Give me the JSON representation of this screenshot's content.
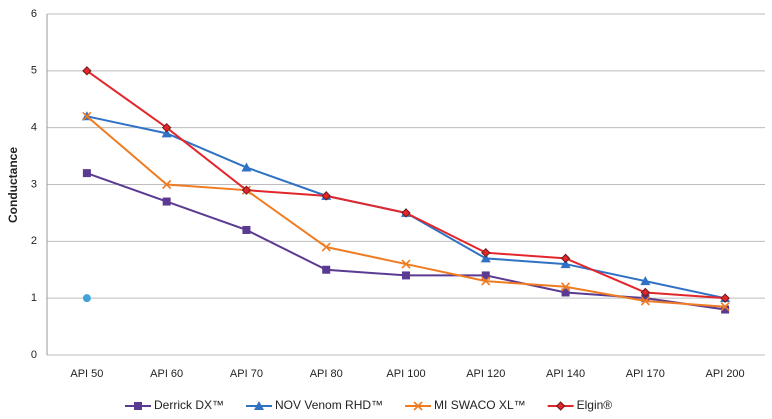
{
  "chart_data": {
    "type": "line",
    "y_label": "Conductance",
    "categories": [
      "API 50",
      "API 60",
      "API 70",
      "API 80",
      "API 100",
      "API 120",
      "API 140",
      "API 170",
      "API 200"
    ],
    "ylim": [
      0,
      6
    ],
    "yticks": [
      0,
      1,
      2,
      3,
      4,
      5,
      6
    ],
    "grid": true,
    "legend": "bottom",
    "series": [
      {
        "name": "Derrick DX™",
        "color": "#5b3b92",
        "marker": "square",
        "values": [
          3.2,
          2.7,
          2.2,
          1.5,
          1.4,
          1.4,
          1.1,
          1.0,
          0.8
        ]
      },
      {
        "name": "NOV Venom RHD™",
        "color": "#2f72c4",
        "marker": "triangle",
        "values": [
          4.2,
          3.9,
          3.3,
          2.8,
          2.5,
          1.7,
          1.6,
          1.3,
          1.0
        ]
      },
      {
        "name": "MI SWACO XL™",
        "color": "#f07c22",
        "marker": "x",
        "values": [
          4.2,
          3.0,
          2.9,
          1.9,
          1.6,
          1.3,
          1.2,
          0.95,
          0.85
        ]
      },
      {
        "name": "Elgin®",
        "color": "#e3262b",
        "marker": "diamond",
        "values": [
          5.0,
          4.0,
          2.9,
          2.8,
          2.5,
          1.8,
          1.7,
          1.1,
          1.0
        ]
      },
      {
        "color": "#3fa3d9",
        "marker": "circle",
        "values": [
          1.0,
          null,
          null,
          null,
          null,
          null,
          null,
          null,
          null
        ]
      }
    ]
  }
}
